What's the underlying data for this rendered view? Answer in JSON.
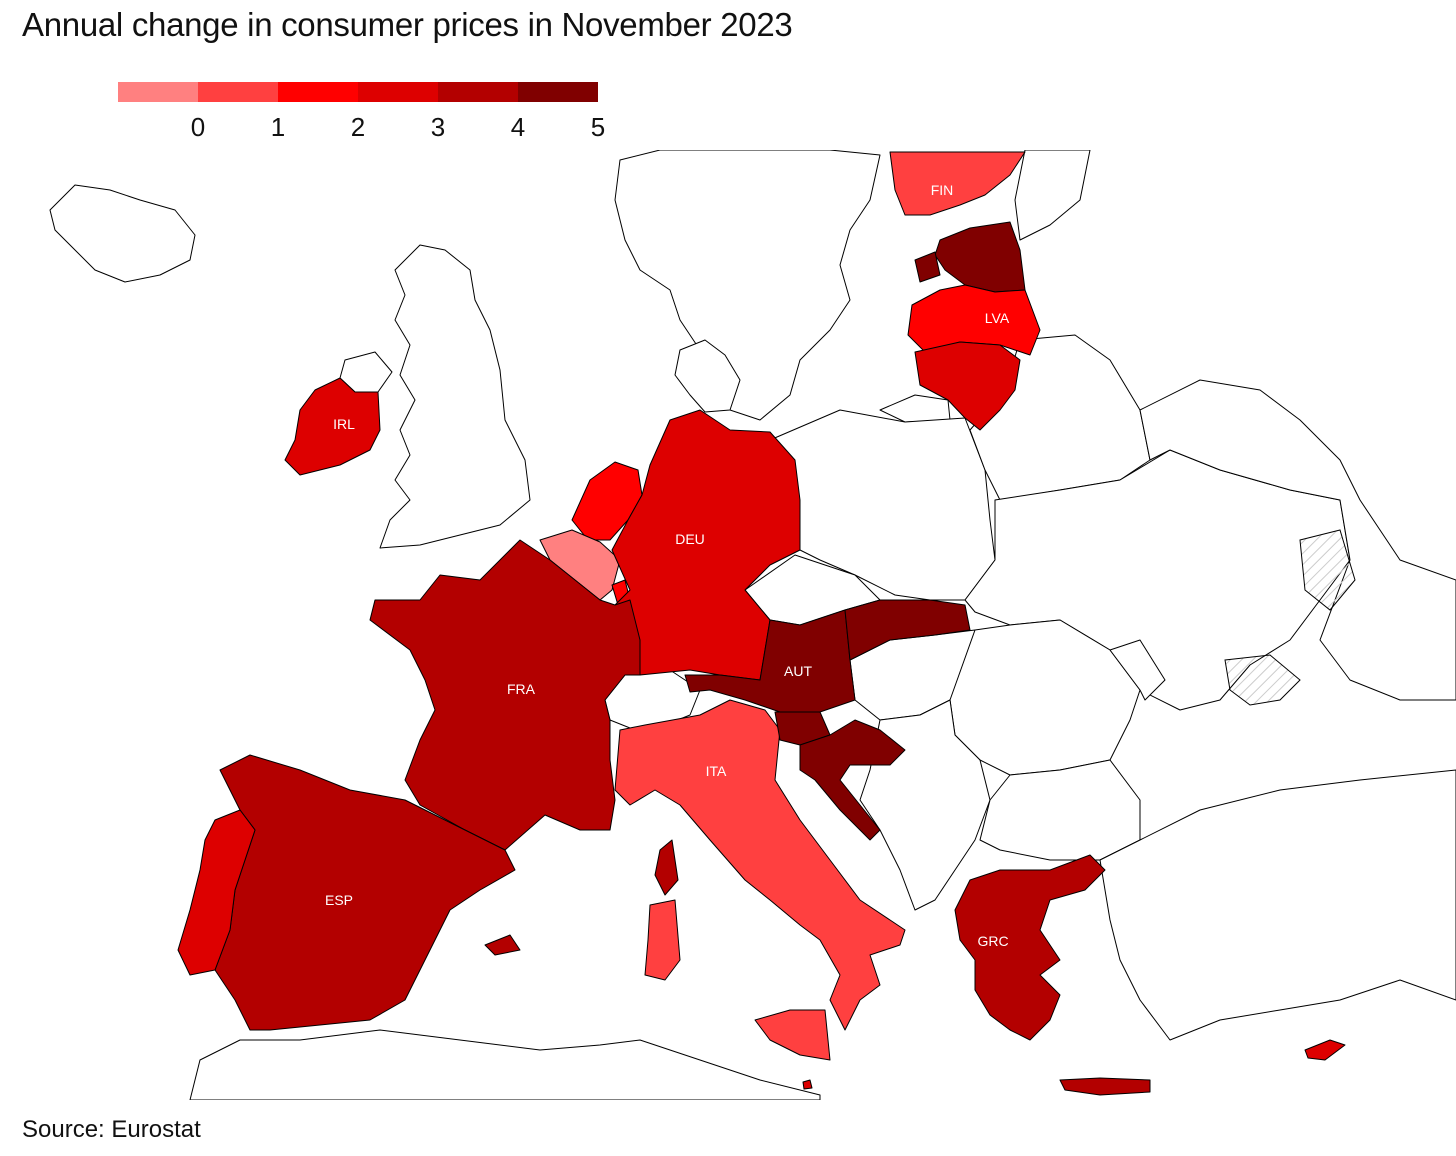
{
  "title": "Annual change in consumer prices in November 2023",
  "source": "Source: Eurostat",
  "legend": {
    "colors": [
      "#ff8080",
      "#ff4040",
      "#ff0000",
      "#dd0000",
      "#b30000",
      "#800000"
    ],
    "ticks": [
      "0",
      "1",
      "2",
      "3",
      "4",
      "5"
    ]
  },
  "colors": {
    "land_unfilled": "#ffffff",
    "border": "#000000",
    "disputed_hatch": "#cccccc"
  },
  "countries": [
    {
      "code": "FIN",
      "label": "FIN",
      "band": 1
    },
    {
      "code": "EST",
      "label": "",
      "band": 5
    },
    {
      "code": "LVA",
      "label": "LVA",
      "band": 2
    },
    {
      "code": "LTU",
      "label": "",
      "band": 3
    },
    {
      "code": "IRL",
      "label": "IRL",
      "band": 3
    },
    {
      "code": "NLD",
      "label": "",
      "band": 2
    },
    {
      "code": "BEL",
      "label": "",
      "band": 0
    },
    {
      "code": "LUX",
      "label": "",
      "band": 2
    },
    {
      "code": "DEU",
      "label": "DEU",
      "band": 3
    },
    {
      "code": "FRA",
      "label": "FRA",
      "band": 4
    },
    {
      "code": "ESP",
      "label": "ESP",
      "band": 4
    },
    {
      "code": "PRT",
      "label": "",
      "band": 3
    },
    {
      "code": "ITA",
      "label": "ITA",
      "band": 1
    },
    {
      "code": "AUT",
      "label": "AUT",
      "band": 5
    },
    {
      "code": "SVK",
      "label": "",
      "band": 5
    },
    {
      "code": "SVN",
      "label": "",
      "band": 5
    },
    {
      "code": "HRV",
      "label": "",
      "band": 5
    },
    {
      "code": "GRC",
      "label": "GRC",
      "band": 4
    },
    {
      "code": "CYP",
      "label": "",
      "band": 3
    },
    {
      "code": "MLT",
      "label": "",
      "band": 3
    }
  ]
}
